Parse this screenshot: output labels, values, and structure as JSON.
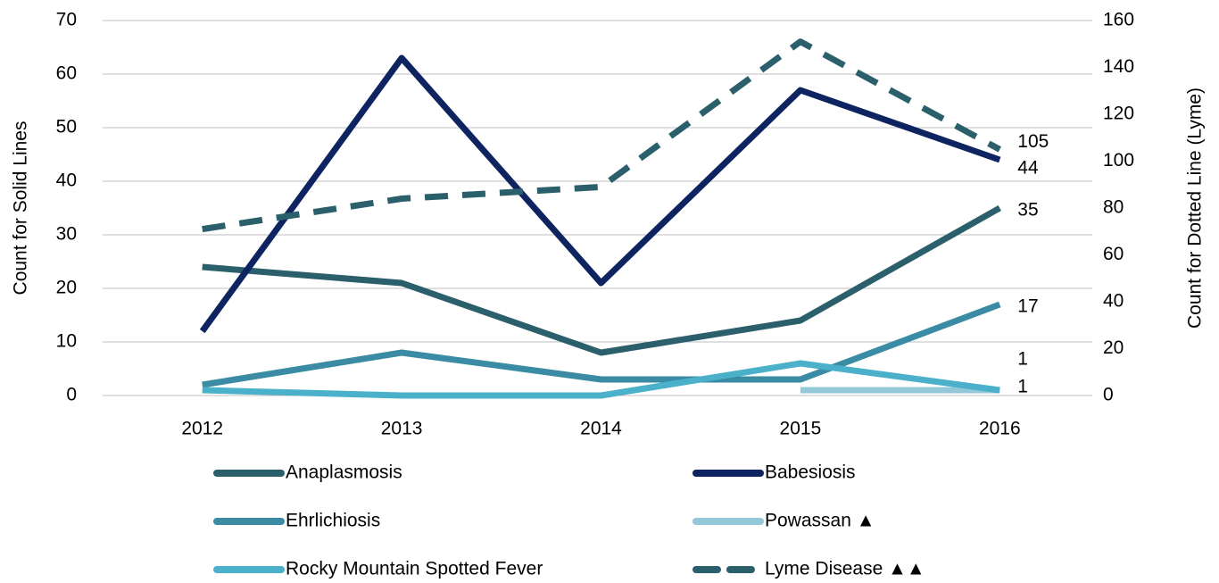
{
  "chart_data": {
    "type": "line",
    "categories": [
      "2012",
      "2013",
      "2014",
      "2015",
      "2016"
    ],
    "ylabel": "Count for Solid Lines",
    "y2label": "Count for Dotted Line (Lyme)",
    "ylim": [
      0,
      70
    ],
    "yticks": [
      0,
      10,
      20,
      30,
      40,
      50,
      60,
      70
    ],
    "y2lim": [
      0,
      160
    ],
    "y2ticks": [
      0,
      20,
      40,
      60,
      80,
      100,
      120,
      140,
      160
    ],
    "grid": true,
    "series": [
      {
        "name": "Anaplasmosis",
        "color": "#2a5f6b",
        "values": [
          24,
          21,
          8,
          14,
          35
        ]
      },
      {
        "name": "Babesiosis",
        "color": "#0d2461",
        "values": [
          12,
          63,
          21,
          57,
          44
        ]
      },
      {
        "name": "Ehrlichiosis",
        "color": "#3a8ba3",
        "values": [
          2,
          8,
          3,
          3,
          17
        ]
      },
      {
        "name": "Powassan ▲",
        "color": "#92c8d8",
        "values": [
          null,
          null,
          null,
          1,
          1
        ]
      },
      {
        "name": "Rocky Mountain Spotted Fever",
        "color": "#4bb0c9",
        "values": [
          1,
          0,
          0,
          6,
          1
        ]
      },
      {
        "name": "Lyme Disease ▲▲",
        "color": "#2a5f6b",
        "dashed": true,
        "axis": "y2",
        "values": [
          71,
          84,
          89,
          151,
          105
        ]
      }
    ]
  }
}
